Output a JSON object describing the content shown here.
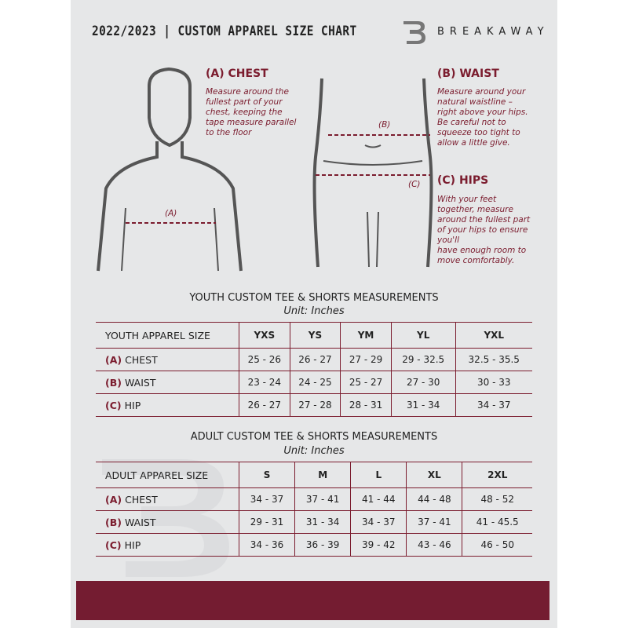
{
  "header": {
    "title": "2022/2023  |  CUSTOM APPAREL SIZE CHART",
    "brand": "BREAKAWAY",
    "logo": "B"
  },
  "chest": {
    "heading": "(A) CHEST",
    "text": "Measure around the\nfullest part of your\nchest, keeping the\ntape measure parallel\nto the floor",
    "marker": "(A)"
  },
  "waist": {
    "heading": "(B) WAIST",
    "text": "Measure around your\nnatural waistline –\nright above your hips.\nBe careful not to\nsqueeze too tight to\nallow a little give.",
    "marker": "(B)"
  },
  "hips": {
    "heading": "(C) HIPS",
    "text": "With your feet\ntogether, measure\naround the fullest part\nof your hips to ensure\nyou'll\nhave enough room to\nmove comfortably.",
    "marker": "(C)"
  },
  "youth": {
    "title": "YOUTH CUSTOM TEE & SHORTS MEASUREMENTS",
    "unit": "Unit: Inches",
    "size_label": "YOUTH APPAREL SIZE",
    "sizes": [
      "YXS",
      "YS",
      "YM",
      "YL",
      "YXL"
    ],
    "rows": [
      {
        "letter": "(A)",
        "name": "CHEST",
        "values": [
          "25 - 26",
          "26 - 27",
          "27 - 29",
          "29 - 32.5",
          "32.5 - 35.5"
        ]
      },
      {
        "letter": "(B)",
        "name": "WAIST",
        "values": [
          "23 - 24",
          "24 - 25",
          "25 - 27",
          "27 - 30",
          "30 - 33"
        ]
      },
      {
        "letter": "(C)",
        "name": "HIP",
        "values": [
          "26 - 27",
          "27 - 28",
          "28 - 31",
          "31 - 34",
          "34 - 37"
        ]
      }
    ]
  },
  "adult": {
    "title": "ADULT CUSTOM TEE & SHORTS MEASUREMENTS",
    "unit": "Unit: Inches",
    "size_label": "ADULT APPAREL SIZE",
    "sizes": [
      "S",
      "M",
      "L",
      "XL",
      "2XL"
    ],
    "rows": [
      {
        "letter": "(A)",
        "name": "CHEST",
        "values": [
          "34 - 37",
          "37 - 41",
          "41 - 44",
          "44 - 48",
          "48 - 52"
        ]
      },
      {
        "letter": "(B)",
        "name": "WAIST",
        "values": [
          "29 - 31",
          "31 - 34",
          "34 - 37",
          "37 - 41",
          "41 - 45.5"
        ]
      },
      {
        "letter": "(C)",
        "name": "HIP",
        "values": [
          "34 - 36",
          "36 - 39",
          "39 - 42",
          "43 - 46",
          "46 - 50"
        ]
      }
    ]
  },
  "colors": {
    "accent": "#741c31",
    "background": "#e6e7e8"
  }
}
